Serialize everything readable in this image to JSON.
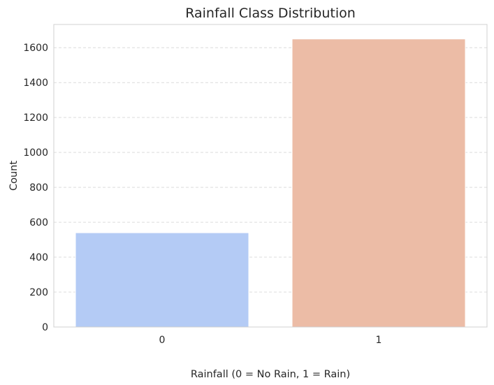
{
  "chart_data": {
    "type": "bar",
    "title": "Rainfall Class Distribution",
    "xlabel": "Rainfall (0 = No Rain, 1 = Rain)",
    "ylabel": "Count",
    "categories": [
      "0",
      "1"
    ],
    "values": [
      540,
      1650
    ],
    "ylim": [
      0,
      1733
    ],
    "yticks": [
      0,
      200,
      400,
      600,
      800,
      1000,
      1200,
      1400,
      1600
    ],
    "colors": [
      "#b4cbf5",
      "#ecbca6"
    ],
    "grid": "y-dashed",
    "legend": "none"
  }
}
